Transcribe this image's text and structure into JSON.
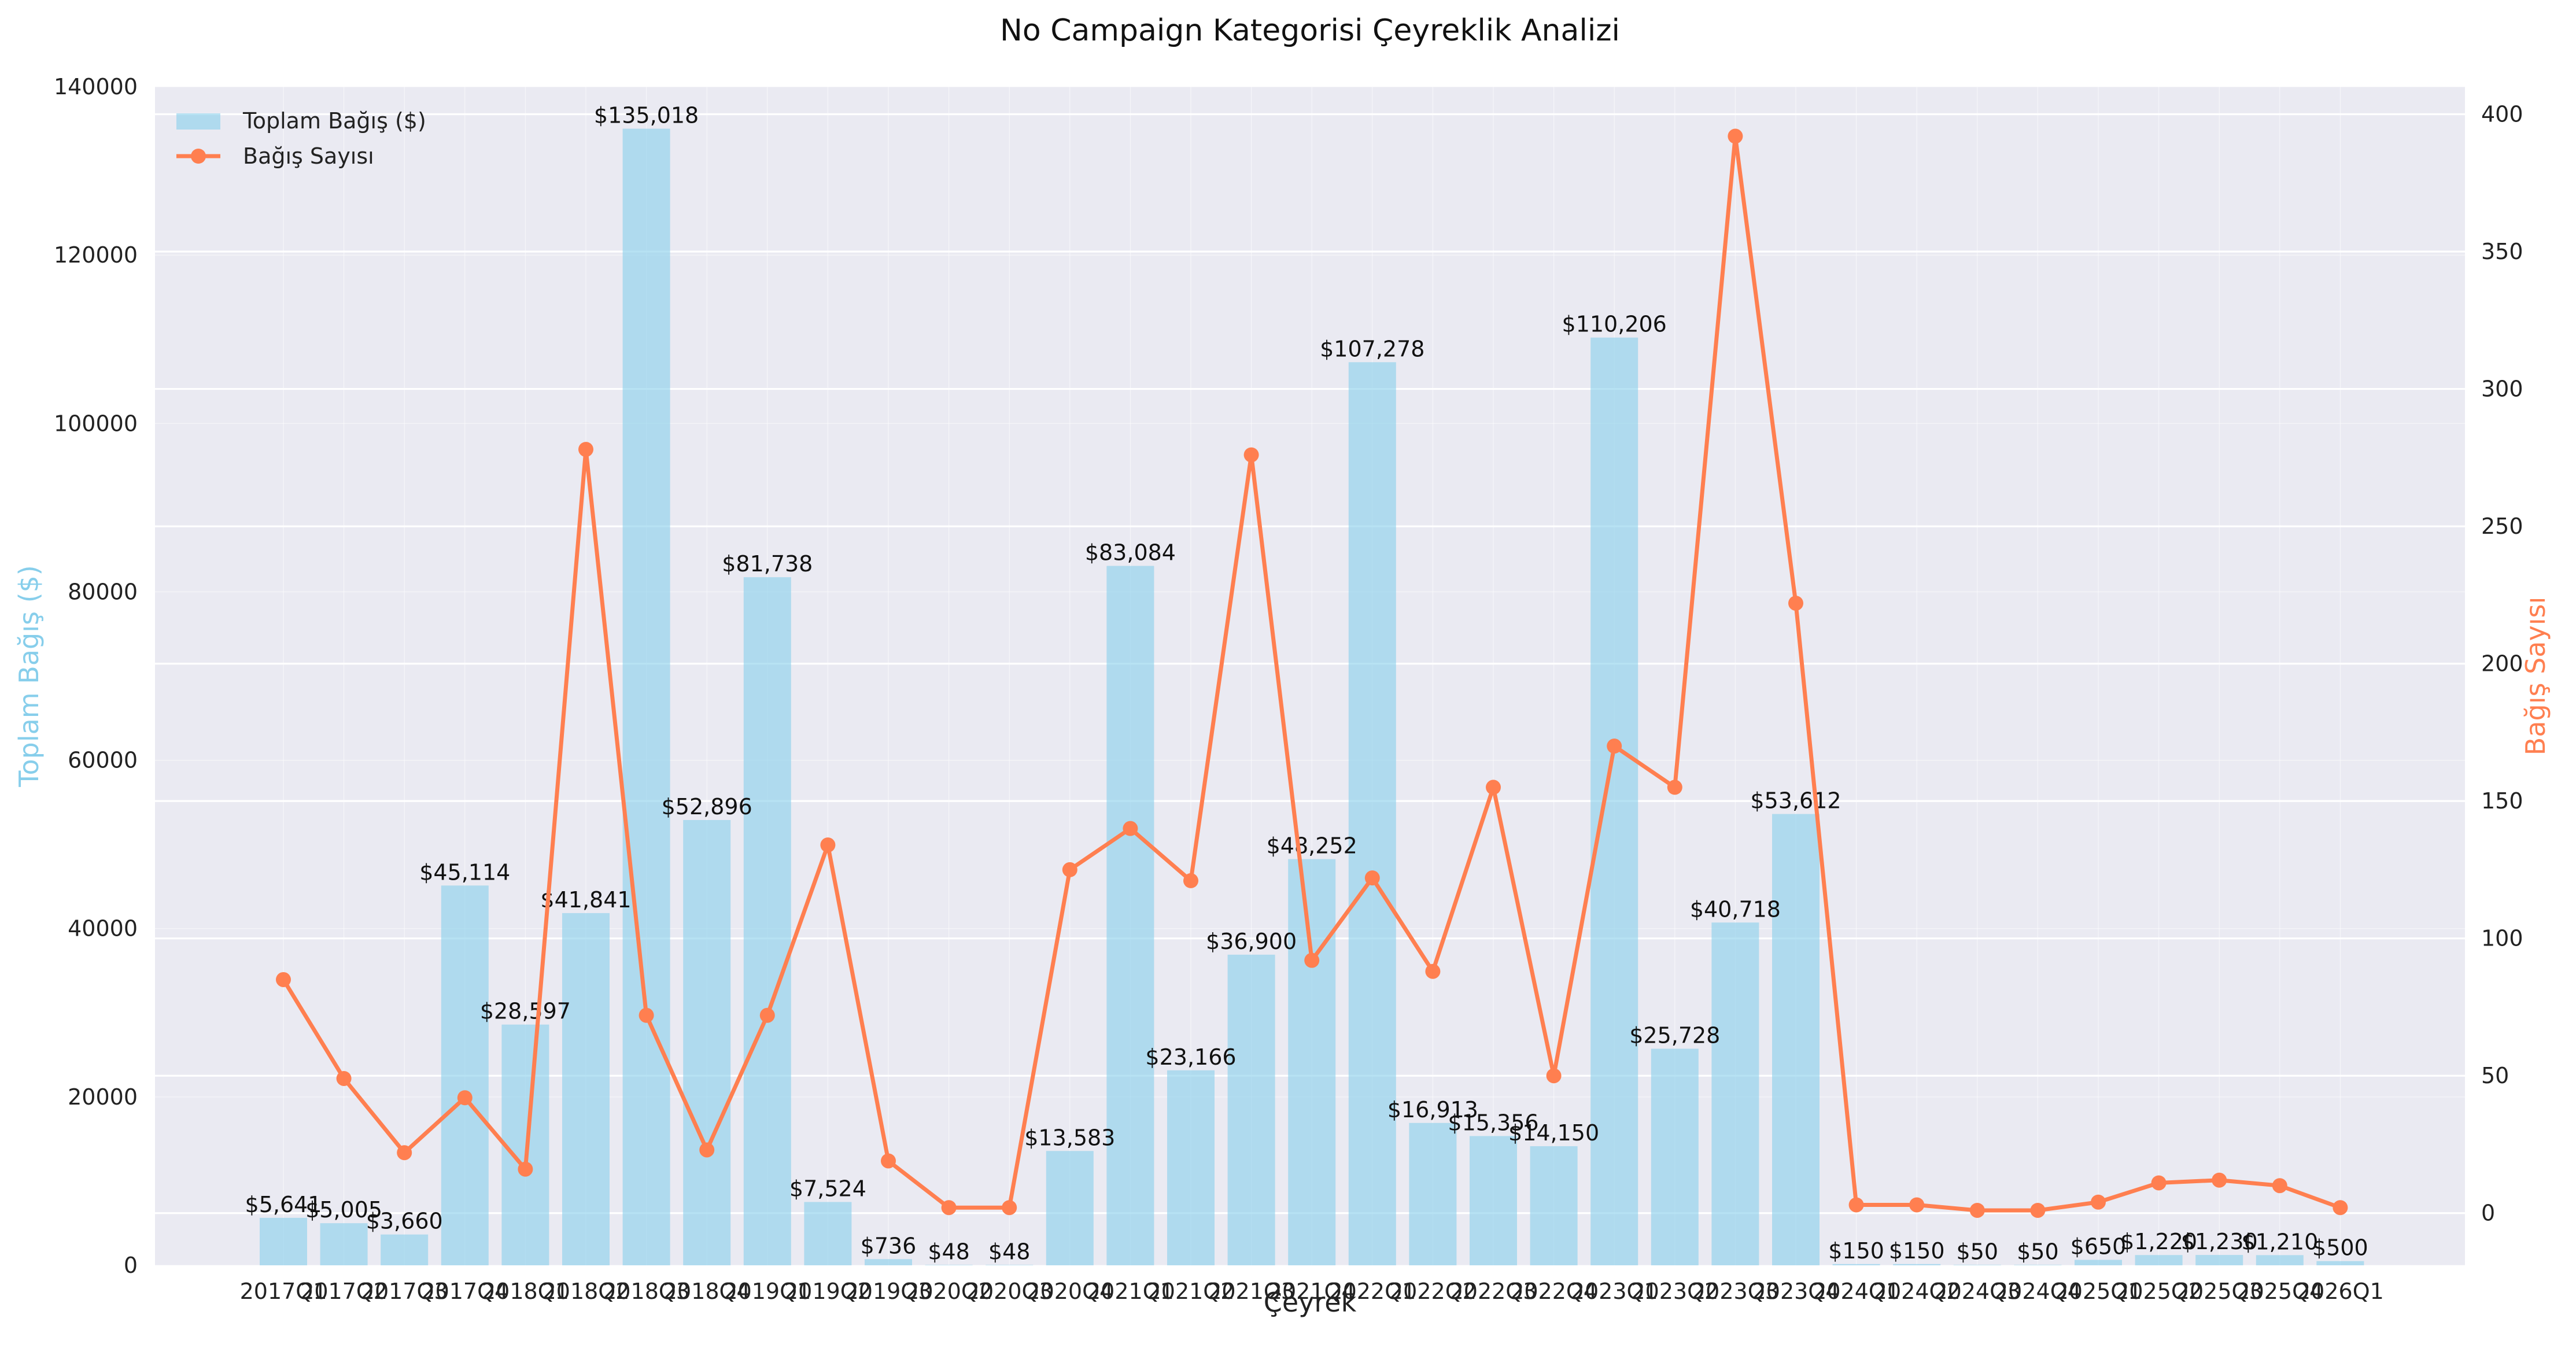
{
  "chart_data": {
    "type": "bar",
    "title": "No Campaign Kategorisi Çeyreklik Analizi",
    "xlabel": "Çeyrek",
    "ylabel": "Toplam Bağış ($)",
    "y2label": "Bağış Sayısı",
    "ylim": [
      0,
      140000
    ],
    "y2lim": [
      -19,
      410
    ],
    "yticks": [
      0,
      20000,
      40000,
      60000,
      80000,
      100000,
      120000,
      140000
    ],
    "y2ticks": [
      0,
      50,
      100,
      150,
      200,
      250,
      300,
      350,
      400
    ],
    "grid": true,
    "legend_position": "top-left",
    "categories": [
      "2017Q1",
      "2017Q2",
      "2017Q3",
      "2017Q4",
      "2018Q1",
      "2018Q2",
      "2018Q3",
      "2018Q4",
      "2019Q1",
      "2019Q2",
      "2019Q3",
      "2020Q2",
      "2020Q3",
      "2020Q4",
      "2021Q1",
      "2021Q2",
      "2021Q3",
      "2021Q4",
      "2022Q1",
      "2022Q2",
      "2022Q3",
      "2022Q4",
      "2023Q1",
      "2023Q2",
      "2023Q3",
      "2023Q4",
      "2024Q1",
      "2024Q2",
      "2024Q3",
      "2024Q4",
      "2025Q1",
      "2025Q2",
      "2025Q3",
      "2025Q4",
      "2026Q1"
    ],
    "series": [
      {
        "name": "Toplam Bağış ($)",
        "type": "bar",
        "axis": "left",
        "color": "#87ceeb",
        "values": [
          5641,
          5005,
          3660,
          45114,
          28597,
          41841,
          135018,
          52896,
          81738,
          7524,
          736,
          48,
          48,
          13583,
          83084,
          23166,
          36900,
          48252,
          107278,
          16913,
          15356,
          14150,
          110206,
          25728,
          40718,
          53612,
          150,
          150,
          50,
          50,
          650,
          1220,
          1230,
          1210,
          500
        ],
        "labels": [
          "$5,641",
          "$5,005",
          "$3,660",
          "$45,114",
          "$28,597",
          "$41,841",
          "$135,018",
          "$52,896",
          "$81,738",
          "$7,524",
          "$736",
          "$48",
          "$48",
          "$13,583",
          "$83,084",
          "$23,166",
          "$36,900",
          "$48,252",
          "$107,278",
          "$16,913",
          "$15,356",
          "$14,150",
          "$110,206",
          "$25,728",
          "$40,718",
          "$53,612",
          "$150",
          "$150",
          "$50",
          "$50",
          "$650",
          "$1,220",
          "$1,230",
          "$1,210",
          "$500"
        ]
      },
      {
        "name": "Bağış Sayısı",
        "type": "line",
        "axis": "right",
        "color": "#ff7f50",
        "values": [
          85,
          49,
          22,
          42,
          16,
          278,
          72,
          23,
          72,
          134,
          19,
          2,
          2,
          125,
          140,
          121,
          276,
          92,
          122,
          88,
          155,
          50,
          170,
          155,
          392,
          222,
          3,
          3,
          1,
          1,
          4,
          11,
          12,
          10,
          2
        ]
      }
    ]
  }
}
